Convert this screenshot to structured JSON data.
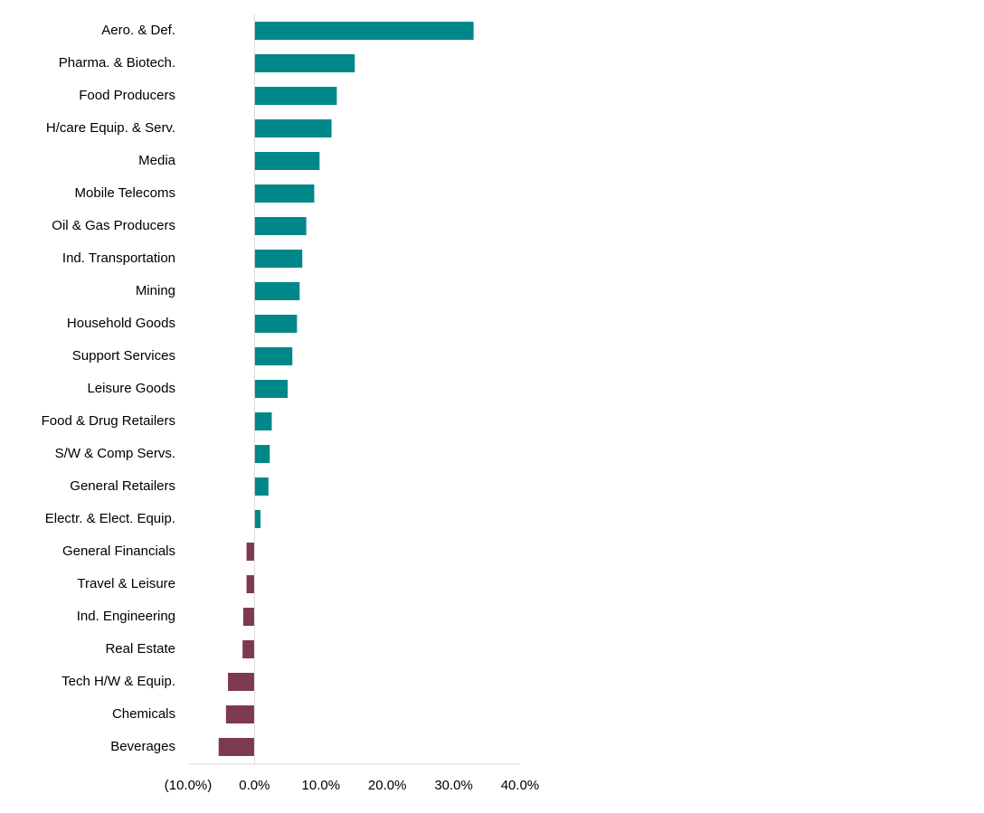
{
  "chart_data": {
    "type": "bar",
    "orientation": "horizontal",
    "title": "",
    "xlabel": "",
    "ylabel": "",
    "categories": [
      "Aero. & Def.",
      "Pharma. & Biotech.",
      "Food Producers",
      "H/care Equip. & Serv.",
      "Media",
      "Mobile Telecoms",
      "Oil & Gas Producers",
      "Ind. Transportation",
      "Mining",
      "Household Goods",
      "Support Services",
      "Leisure Goods",
      "Food & Drug Retailers",
      "S/W & Comp Servs.",
      "General Retailers",
      "Electr. & Elect. Equip.",
      "General Financials",
      "Travel & Leisure",
      "Ind. Engineering",
      "Real Estate",
      "Tech H/W & Equip.",
      "Chemicals",
      "Beverages"
    ],
    "values": [
      33.0,
      15.1,
      12.4,
      11.6,
      9.8,
      9.0,
      7.8,
      7.2,
      6.8,
      6.4,
      5.7,
      5.0,
      2.6,
      2.3,
      2.1,
      0.9,
      -1.2,
      -1.2,
      -1.7,
      -1.8,
      -4.0,
      -4.3,
      -5.4
    ],
    "xlim": [
      -10,
      40
    ],
    "xticks": [
      -10,
      0,
      10,
      20,
      30,
      40
    ],
    "xtick_labels": [
      "(10.0%)",
      "0.0%",
      "10.0%",
      "20.0%",
      "30.0%",
      "40.0%"
    ],
    "grid": false,
    "legend": "none",
    "colors": {
      "positive": "#00878a",
      "negative": "#7d3a4e",
      "axis": "#d9d9d9"
    }
  }
}
